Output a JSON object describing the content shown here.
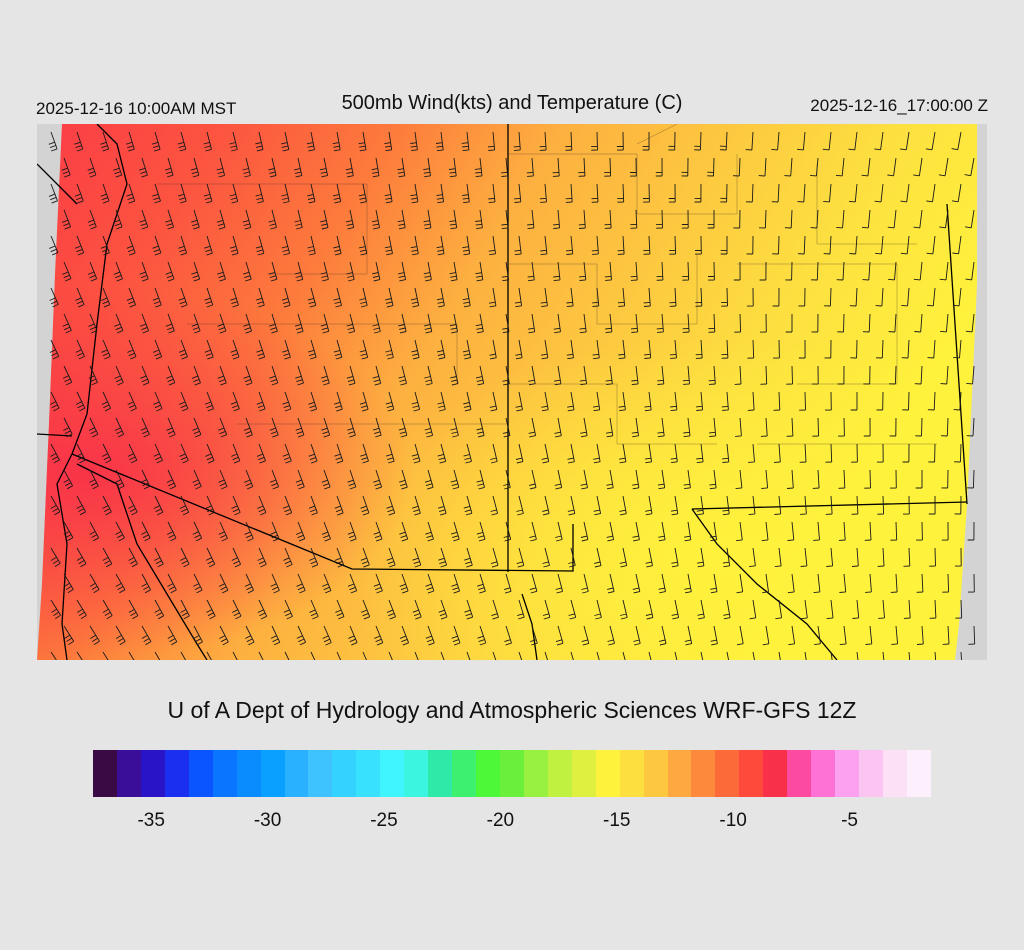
{
  "header": {
    "local_time": "2025-12-16 10:00AM MST",
    "title": "500mb Wind(kts) and Temperature (C)",
    "utc_time": "2025-12-16_17:00:00 Z"
  },
  "credit": "U of A Dept of Hydrology and Atmospheric Sciences WRF-GFS 12Z",
  "legend": {
    "colors": [
      "#3a0a45",
      "#3b0e9a",
      "#2a14c8",
      "#1a2ff0",
      "#0a55ff",
      "#0a76ff",
      "#0a8cff",
      "#0aa0ff",
      "#29b0ff",
      "#3fc3ff",
      "#34d2ff",
      "#38e2ff",
      "#40f5ff",
      "#3cf5e0",
      "#2ee9a8",
      "#3ef070",
      "#4cf838",
      "#6af03a",
      "#98f040",
      "#c0f040",
      "#e0f040",
      "#fff23c",
      "#fde040",
      "#fdc840",
      "#fda840",
      "#fd8a3c",
      "#fd6a3a",
      "#fd4a3a",
      "#f8304a",
      "#fc4aa0",
      "#fd72d4",
      "#fca0f0",
      "#fcc4f0",
      "#fce0f6",
      "#fdf0fc"
    ],
    "tick_labels": [
      "-35",
      "-30",
      "-25",
      "-20",
      "-15",
      "-10",
      "-5"
    ],
    "tick_values": [
      -35,
      -30,
      -25,
      -20,
      -15,
      -10,
      -5
    ],
    "range": [
      -37.5,
      -1.5
    ]
  },
  "map": {
    "region": "Western United States",
    "field": "500mb temperature with wind barbs"
  }
}
